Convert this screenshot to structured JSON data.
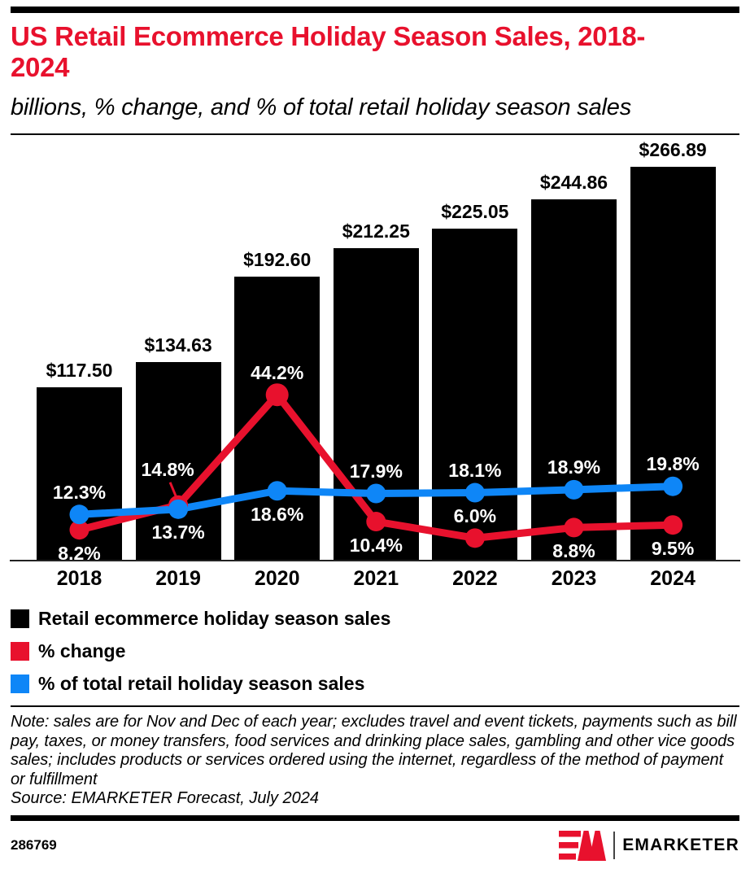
{
  "header": {
    "title": "US Retail Ecommerce Holiday Season Sales, 2018-2024",
    "subtitle": "billions, % change, and % of total retail holiday season sales"
  },
  "chart_data": {
    "type": "bar+line combo",
    "categories": [
      "2018",
      "2019",
      "2020",
      "2021",
      "2022",
      "2023",
      "2024"
    ],
    "bar_series": {
      "name": "Retail ecommerce holiday season sales",
      "unit": "billions of US dollars",
      "color": "#000000",
      "values": [
        117.5,
        134.63,
        192.6,
        212.25,
        225.05,
        244.86,
        266.89
      ],
      "value_label_format": "$#.00"
    },
    "line_series": [
      {
        "name": "% change",
        "color": "#e8112d",
        "values": [
          8.2,
          14.8,
          44.2,
          10.4,
          6.0,
          8.8,
          9.5
        ],
        "label_pos": [
          "below",
          "above-leader",
          "above",
          "below",
          "above",
          "below",
          "below"
        ]
      },
      {
        "name": "% of total retail holiday season sales",
        "color": "#0e86f7",
        "values": [
          12.3,
          13.7,
          18.6,
          17.9,
          18.1,
          18.9,
          19.8
        ],
        "label_pos": [
          "above",
          "below",
          "below",
          "above",
          "above",
          "above",
          "above"
        ]
      }
    ],
    "ylim_bars": [
      0,
      290
    ],
    "ylim_pct": [
      0,
      113
    ],
    "grid": false,
    "x_axis_line": true,
    "legend_position": "bottom-left",
    "value_labels_shown": true
  },
  "legend": {
    "items": [
      {
        "label": "Retail ecommerce holiday season sales",
        "color": "#000000"
      },
      {
        "label": "% change",
        "color": "#e8112d"
      },
      {
        "label": "% of total retail holiday season sales",
        "color": "#0e86f7"
      }
    ]
  },
  "note": {
    "text": "Note: sales are for Nov and Dec of each year; excludes travel and event tickets, payments such as bill pay, taxes, or money transfers, food services and drinking place sales, gambling and other vice goods sales; includes products or services ordered using the internet, regardless of the method of payment or fulfillment",
    "source": "Source: EMARKETER Forecast, July 2024"
  },
  "footer": {
    "chart_id": "286769",
    "logo_text": "EMARKETER"
  },
  "colors": {
    "accent_red": "#e8112d",
    "accent_blue": "#0e86f7",
    "bar_black": "#000000"
  }
}
